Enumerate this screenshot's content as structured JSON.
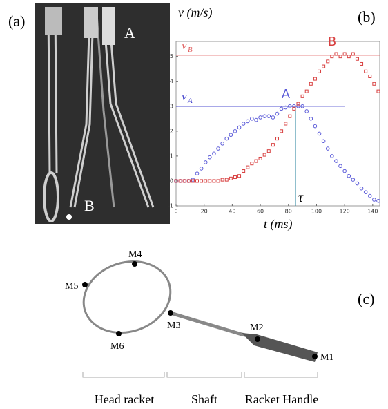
{
  "panels": {
    "a": "(a)",
    "b": "(b)",
    "c": "(c)"
  },
  "photo": {
    "labels": [
      "A",
      "B"
    ]
  },
  "chart_data": {
    "type": "scatter",
    "ylabel": "v (m/s)",
    "xlabel": "t (ms)",
    "xlim": [
      0,
      145
    ],
    "ylim": [
      -1,
      5.6
    ],
    "xticks": [
      0,
      20,
      40,
      60,
      80,
      100,
      120,
      140
    ],
    "yticks": [
      -1,
      0,
      1,
      2,
      3,
      4,
      5
    ],
    "x": [
      0,
      3,
      6,
      9,
      12,
      15,
      18,
      21,
      24,
      27,
      30,
      33,
      36,
      39,
      42,
      45,
      48,
      51,
      54,
      57,
      60,
      63,
      66,
      69,
      72,
      75,
      78,
      81,
      84,
      87,
      90,
      93,
      96,
      99,
      102,
      105,
      108,
      111,
      114,
      117,
      120,
      123,
      126,
      129,
      132,
      135,
      138,
      141,
      144
    ],
    "series": [
      {
        "name": "A",
        "color": "#5a5ad8",
        "marker": "circle",
        "values": [
          0,
          0,
          0,
          0,
          0.05,
          0.3,
          0.5,
          0.75,
          0.95,
          1.1,
          1.3,
          1.5,
          1.7,
          1.85,
          2.0,
          2.15,
          2.3,
          2.4,
          2.5,
          2.45,
          2.55,
          2.6,
          2.6,
          2.55,
          2.7,
          2.9,
          2.95,
          3.0,
          3.0,
          3.0,
          3.0,
          2.8,
          2.5,
          2.2,
          1.9,
          1.6,
          1.3,
          1.0,
          0.8,
          0.6,
          0.4,
          0.2,
          0.05,
          -0.1,
          -0.3,
          -0.45,
          -0.6,
          -0.75,
          -0.8
        ]
      },
      {
        "name": "B",
        "color": "#d84040",
        "marker": "square",
        "values": [
          0,
          0,
          0,
          0,
          0,
          0,
          0,
          0,
          0,
          0,
          0,
          0.05,
          0.05,
          0.1,
          0.15,
          0.2,
          0.4,
          0.55,
          0.7,
          0.8,
          0.9,
          1.05,
          1.2,
          1.45,
          1.7,
          2.0,
          2.3,
          2.6,
          2.9,
          3.1,
          3.4,
          3.6,
          3.9,
          4.1,
          4.4,
          4.6,
          4.8,
          5.0,
          5.1,
          5.0,
          5.1,
          5.0,
          5.1,
          4.9,
          4.7,
          4.4,
          4.2,
          3.9,
          3.6
        ]
      }
    ],
    "reference_lines": [
      {
        "label": "v",
        "sub": "A",
        "value": 3,
        "axis": "y",
        "color": "#4444cc"
      },
      {
        "label": "v",
        "sub": "B",
        "value": 5.05,
        "axis": "y",
        "color": "#e06060"
      },
      {
        "label": "τ",
        "value": 85,
        "axis": "x",
        "color": "#2f86a0"
      }
    ]
  },
  "diagram": {
    "markers": [
      "M1",
      "M2",
      "M3",
      "M4",
      "M5",
      "M6"
    ],
    "sections": [
      "Head racket",
      "Shaft",
      "Racket Handle"
    ]
  }
}
